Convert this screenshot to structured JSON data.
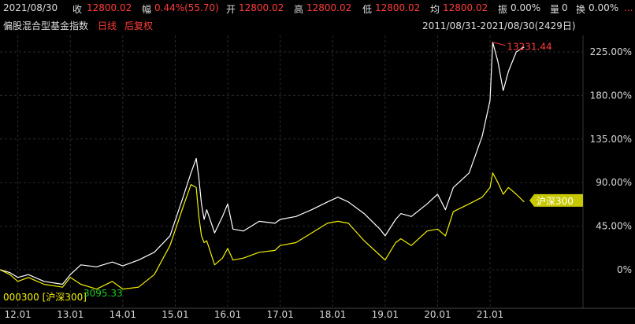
{
  "header": {
    "date": "2021/08/30",
    "close_label": "收",
    "close_value": "12800.02",
    "change_label": "幅",
    "change_value": "0.44%(55.70)",
    "open_label": "开",
    "open_value": "12800.02",
    "high_label": "高",
    "high_value": "12800.02",
    "low_label": "低",
    "low_value": "12800.02",
    "avg_label": "均",
    "avg_value": "12800.02",
    "amplitude_label": "振",
    "amplitude_value": "0.00%",
    "volume_label": "量",
    "volume_value": "0",
    "turnover_label": "换",
    "turnover_value": "0.00%",
    "more": "..."
  },
  "subheader": {
    "index_name": "偏股混合型基金指数",
    "period": "日线",
    "adjust": "后复权",
    "range": "2011/08/31-2021/08/30(2429日)"
  },
  "colors": {
    "background": "#000000",
    "main_line": "#ffffff",
    "benchmark_line": "#f2f200",
    "accent_red": "#ff3b3b",
    "benchmark_tag": "#c8c800"
  },
  "chart_data": {
    "type": "line",
    "y_unit": "percent change",
    "ylim": [
      -25,
      245
    ],
    "yticks": [
      "0%",
      "45.00%",
      "90.00%",
      "135.00%",
      "180.00%",
      "225.00%"
    ],
    "xticks": [
      "12.01",
      "13.01",
      "14.01",
      "15.01",
      "16.01",
      "17.01",
      "18.01",
      "19.01",
      "20.01",
      "21.01"
    ],
    "x_range": [
      "2011/08/31",
      "2021/08/30"
    ],
    "max_label": "13231.44",
    "benchmark_tag": "沪深300",
    "legend_text": "000300 [沪深300]",
    "legend_value": "3095.33",
    "series": [
      {
        "x": [
          2011.66,
          2011.85,
          2012.0,
          2012.2,
          2012.5,
          2012.85,
          2013.0,
          2013.2,
          2013.5,
          2013.8,
          2014.0,
          2014.3,
          2014.6,
          2014.9,
          2015.15,
          2015.3,
          2015.4,
          2015.45,
          2015.5,
          2015.55,
          2015.6,
          2015.75,
          2015.9,
          2016.0,
          2016.1,
          2016.3,
          2016.6,
          2016.9,
          2017.0,
          2017.3,
          2017.6,
          2017.9,
          2018.1,
          2018.3,
          2018.6,
          2018.9,
          2019.0,
          2019.2,
          2019.3,
          2019.5,
          2019.8,
          2020.0,
          2020.15,
          2020.3,
          2020.6,
          2020.85,
          2021.0,
          2021.05,
          2021.15,
          2021.25,
          2021.35,
          2021.5,
          2021.65
        ],
        "values": [
          0,
          -3,
          -8,
          -5,
          -12,
          -15,
          -5,
          5,
          3,
          8,
          4,
          10,
          18,
          35,
          75,
          100,
          115,
          95,
          68,
          52,
          62,
          38,
          55,
          68,
          42,
          40,
          50,
          48,
          52,
          55,
          62,
          70,
          75,
          70,
          58,
          42,
          35,
          52,
          58,
          55,
          68,
          78,
          62,
          85,
          100,
          138,
          175,
          235,
          215,
          185,
          205,
          225,
          230
        ]
      },
      {
        "x": [
          2011.66,
          2011.85,
          2012.0,
          2012.2,
          2012.5,
          2012.85,
          2013.0,
          2013.2,
          2013.5,
          2013.8,
          2014.0,
          2014.3,
          2014.6,
          2014.9,
          2015.15,
          2015.3,
          2015.4,
          2015.45,
          2015.5,
          2015.55,
          2015.6,
          2015.75,
          2015.9,
          2016.0,
          2016.1,
          2016.3,
          2016.6,
          2016.9,
          2017.0,
          2017.3,
          2017.6,
          2017.9,
          2018.1,
          2018.3,
          2018.6,
          2018.9,
          2019.0,
          2019.2,
          2019.3,
          2019.5,
          2019.8,
          2020.0,
          2020.15,
          2020.3,
          2020.6,
          2020.85,
          2021.0,
          2021.05,
          2021.15,
          2021.25,
          2021.35,
          2021.5,
          2021.65
        ],
        "values": [
          0,
          -5,
          -12,
          -8,
          -15,
          -18,
          -8,
          -15,
          -20,
          -12,
          -20,
          -18,
          -5,
          25,
          65,
          88,
          85,
          55,
          35,
          28,
          30,
          5,
          12,
          22,
          10,
          12,
          18,
          20,
          25,
          28,
          38,
          48,
          50,
          48,
          30,
          15,
          10,
          28,
          32,
          25,
          40,
          42,
          35,
          60,
          68,
          75,
          85,
          100,
          90,
          78,
          85,
          78,
          70
        ]
      }
    ]
  }
}
